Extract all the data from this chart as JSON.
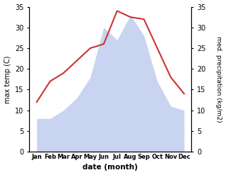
{
  "months": [
    "Jan",
    "Feb",
    "Mar",
    "Apr",
    "May",
    "Jun",
    "Jul",
    "Aug",
    "Sep",
    "Oct",
    "Nov",
    "Dec"
  ],
  "temperature": [
    12,
    17,
    19,
    22,
    25,
    26,
    34,
    32.5,
    32,
    25,
    18,
    14
  ],
  "precipitation": [
    8,
    8,
    10,
    13,
    18,
    30,
    27,
    33,
    28,
    17,
    11,
    10
  ],
  "temp_color": "#cc3333",
  "precip_fill_color": "#c8d4f0",
  "ylabel_left": "max temp (C)",
  "ylabel_right": "med. precipitation (kg/m2)",
  "xlabel": "date (month)",
  "ylim": [
    0,
    35
  ],
  "yticks": [
    0,
    5,
    10,
    15,
    20,
    25,
    30,
    35
  ],
  "background_color": "#ffffff",
  "fig_width": 3.18,
  "fig_height": 2.47
}
